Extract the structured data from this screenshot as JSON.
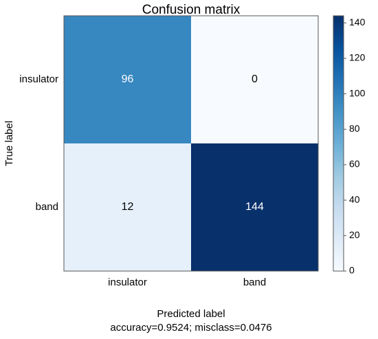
{
  "chart_data": {
    "type": "heatmap",
    "title": "Confusion matrix",
    "xlabel": "Predicted label",
    "subtitle": "accuracy=0.9524; misclass=0.0476",
    "ylabel": "True label",
    "x_categories": [
      "insulator",
      "band"
    ],
    "y_categories": [
      "insulator",
      "band"
    ],
    "values": [
      [
        96,
        0
      ],
      [
        12,
        144
      ]
    ],
    "colormap": "Blues",
    "colorbar": {
      "lim": [
        0,
        144
      ],
      "ticks": [
        0,
        20,
        40,
        60,
        80,
        100,
        120,
        140
      ]
    }
  }
}
